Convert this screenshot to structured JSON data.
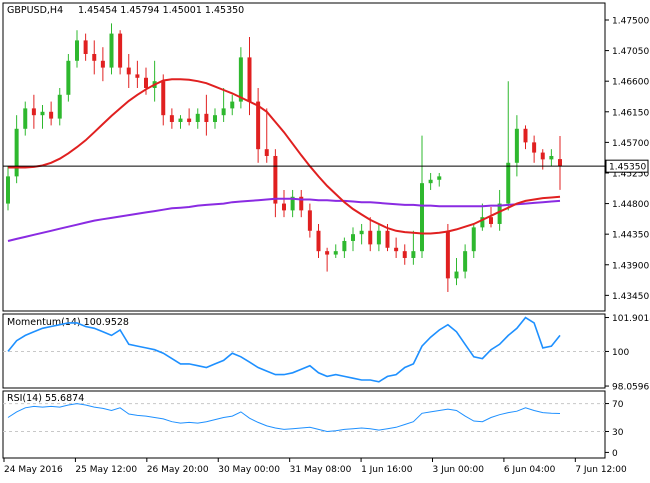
{
  "header": {
    "symbol": "GBPUSD,H4",
    "ohlc": "1.45454 1.45794 1.45001 1.45350"
  },
  "price_axis": {
    "ticks": [
      "1.47500",
      "1.47050",
      "1.46600",
      "1.46150",
      "1.45700",
      "1.45250",
      "1.44800",
      "1.44350",
      "1.43900",
      "1.43450"
    ],
    "current_price": "1.45350"
  },
  "momentum_panel": {
    "title": "Momentum(14) 100.9528",
    "ticks": [
      "101.9018",
      "100",
      "98.0596"
    ]
  },
  "rsi_panel": {
    "title": "RSI(14) 55.6874",
    "ticks": [
      "70",
      "30",
      "0"
    ]
  },
  "time_axis": {
    "labels": [
      "24 May 2016",
      "25 May 12:00",
      "26 May 20:00",
      "30 May 00:00",
      "31 May 08:00",
      "1 Jun 16:00",
      "3 Jun 00:00",
      "6 Jun 04:00",
      "7 Jun 12:00"
    ]
  },
  "colors": {
    "bull": "#2eb82e",
    "bear": "#e02020",
    "sma_fast": "#e02020",
    "sma_slow": "#8a2be2",
    "indicator": "#1e90ff",
    "grid": "#c8c8c8",
    "frame": "#000000"
  },
  "chart_data": [
    {
      "type": "candlestick",
      "title": "GBPUSD,H4 1.45454 1.45794 1.45001 1.45350",
      "ylim": [
        1.4322,
        1.4775
      ],
      "x_labels": [
        "24 May 2016",
        "25 May 12:00",
        "26 May 20:00",
        "30 May 00:00",
        "31 May 08:00",
        "1 Jun 16:00",
        "3 Jun 00:00",
        "6 Jun 04:00",
        "7 Jun 12:00"
      ],
      "candles": [
        {
          "o": 1.448,
          "h": 1.4535,
          "l": 1.447,
          "c": 1.452
        },
        {
          "o": 1.452,
          "h": 1.461,
          "l": 1.451,
          "c": 1.459
        },
        {
          "o": 1.459,
          "h": 1.463,
          "l": 1.458,
          "c": 1.462
        },
        {
          "o": 1.462,
          "h": 1.464,
          "l": 1.459,
          "c": 1.461
        },
        {
          "o": 1.461,
          "h": 1.4625,
          "l": 1.459,
          "c": 1.4615
        },
        {
          "o": 1.4615,
          "h": 1.463,
          "l": 1.4595,
          "c": 1.4605
        },
        {
          "o": 1.4605,
          "h": 1.465,
          "l": 1.4595,
          "c": 1.464
        },
        {
          "o": 1.464,
          "h": 1.47,
          "l": 1.463,
          "c": 1.469
        },
        {
          "o": 1.469,
          "h": 1.4735,
          "l": 1.468,
          "c": 1.472
        },
        {
          "o": 1.472,
          "h": 1.473,
          "l": 1.469,
          "c": 1.47
        },
        {
          "o": 1.47,
          "h": 1.472,
          "l": 1.467,
          "c": 1.469
        },
        {
          "o": 1.469,
          "h": 1.471,
          "l": 1.466,
          "c": 1.468
        },
        {
          "o": 1.468,
          "h": 1.4745,
          "l": 1.467,
          "c": 1.473
        },
        {
          "o": 1.473,
          "h": 1.4735,
          "l": 1.467,
          "c": 1.468
        },
        {
          "o": 1.468,
          "h": 1.47,
          "l": 1.465,
          "c": 1.467
        },
        {
          "o": 1.467,
          "h": 1.469,
          "l": 1.465,
          "c": 1.4665
        },
        {
          "o": 1.4665,
          "h": 1.468,
          "l": 1.464,
          "c": 1.465
        },
        {
          "o": 1.465,
          "h": 1.469,
          "l": 1.463,
          "c": 1.466
        },
        {
          "o": 1.466,
          "h": 1.467,
          "l": 1.4595,
          "c": 1.461
        },
        {
          "o": 1.461,
          "h": 1.462,
          "l": 1.459,
          "c": 1.46
        },
        {
          "o": 1.46,
          "h": 1.461,
          "l": 1.459,
          "c": 1.4605
        },
        {
          "o": 1.4605,
          "h": 1.462,
          "l": 1.4595,
          "c": 1.46
        },
        {
          "o": 1.46,
          "h": 1.462,
          "l": 1.459,
          "c": 1.4612
        },
        {
          "o": 1.4612,
          "h": 1.464,
          "l": 1.458,
          "c": 1.46
        },
        {
          "o": 1.46,
          "h": 1.462,
          "l": 1.459,
          "c": 1.461
        },
        {
          "o": 1.461,
          "h": 1.465,
          "l": 1.46,
          "c": 1.462
        },
        {
          "o": 1.462,
          "h": 1.464,
          "l": 1.461,
          "c": 1.463
        },
        {
          "o": 1.463,
          "h": 1.471,
          "l": 1.462,
          "c": 1.4695
        },
        {
          "o": 1.4695,
          "h": 1.4725,
          "l": 1.461,
          "c": 1.463
        },
        {
          "o": 1.463,
          "h": 1.465,
          "l": 1.454,
          "c": 1.456
        },
        {
          "o": 1.456,
          "h": 1.462,
          "l": 1.454,
          "c": 1.455
        },
        {
          "o": 1.455,
          "h": 1.456,
          "l": 1.446,
          "c": 1.448
        },
        {
          "o": 1.448,
          "h": 1.45,
          "l": 1.446,
          "c": 1.447
        },
        {
          "o": 1.447,
          "h": 1.45,
          "l": 1.446,
          "c": 1.449
        },
        {
          "o": 1.449,
          "h": 1.45,
          "l": 1.446,
          "c": 1.447
        },
        {
          "o": 1.447,
          "h": 1.448,
          "l": 1.443,
          "c": 1.444
        },
        {
          "o": 1.444,
          "h": 1.445,
          "l": 1.44,
          "c": 1.441
        },
        {
          "o": 1.441,
          "h": 1.4415,
          "l": 1.438,
          "c": 1.4405
        },
        {
          "o": 1.4405,
          "h": 1.442,
          "l": 1.44,
          "c": 1.441
        },
        {
          "o": 1.441,
          "h": 1.443,
          "l": 1.44,
          "c": 1.4425
        },
        {
          "o": 1.4425,
          "h": 1.4445,
          "l": 1.441,
          "c": 1.4435
        },
        {
          "o": 1.4435,
          "h": 1.445,
          "l": 1.442,
          "c": 1.444
        },
        {
          "o": 1.444,
          "h": 1.446,
          "l": 1.441,
          "c": 1.442
        },
        {
          "o": 1.442,
          "h": 1.445,
          "l": 1.441,
          "c": 1.444
        },
        {
          "o": 1.444,
          "h": 1.445,
          "l": 1.441,
          "c": 1.4415
        },
        {
          "o": 1.4415,
          "h": 1.443,
          "l": 1.44,
          "c": 1.441
        },
        {
          "o": 1.441,
          "h": 1.442,
          "l": 1.439,
          "c": 1.44
        },
        {
          "o": 1.44,
          "h": 1.444,
          "l": 1.439,
          "c": 1.441
        },
        {
          "o": 1.441,
          "h": 1.458,
          "l": 1.44,
          "c": 1.451
        },
        {
          "o": 1.451,
          "h": 1.4525,
          "l": 1.45,
          "c": 1.4515
        },
        {
          "o": 1.4515,
          "h": 1.4525,
          "l": 1.4505,
          "c": 1.452
        },
        {
          "o": 1.444,
          "h": 1.445,
          "l": 1.435,
          "c": 1.437
        },
        {
          "o": 1.437,
          "h": 1.44,
          "l": 1.436,
          "c": 1.438
        },
        {
          "o": 1.438,
          "h": 1.442,
          "l": 1.437,
          "c": 1.441
        },
        {
          "o": 1.441,
          "h": 1.445,
          "l": 1.44,
          "c": 1.4445
        },
        {
          "o": 1.4445,
          "h": 1.448,
          "l": 1.444,
          "c": 1.446
        },
        {
          "o": 1.446,
          "h": 1.4475,
          "l": 1.4445,
          "c": 1.445
        },
        {
          "o": 1.445,
          "h": 1.45,
          "l": 1.444,
          "c": 1.448
        },
        {
          "o": 1.448,
          "h": 1.466,
          "l": 1.447,
          "c": 1.454
        },
        {
          "o": 1.454,
          "h": 1.461,
          "l": 1.452,
          "c": 1.459
        },
        {
          "o": 1.459,
          "h": 1.4595,
          "l": 1.456,
          "c": 1.457
        },
        {
          "o": 1.457,
          "h": 1.458,
          "l": 1.454,
          "c": 1.4555
        },
        {
          "o": 1.4555,
          "h": 1.456,
          "l": 1.453,
          "c": 1.4545
        },
        {
          "o": 1.4545,
          "h": 1.456,
          "l": 1.4535,
          "c": 1.455
        },
        {
          "o": 1.45454,
          "h": 1.45794,
          "l": 1.45001,
          "c": 1.4535
        }
      ],
      "series": [
        {
          "type": "line",
          "values": [
            1.4533,
            1.4533,
            1.4533,
            1.4534,
            1.4536,
            1.454,
            1.4546,
            1.4554,
            1.4563,
            1.4573,
            1.4585,
            1.4597,
            1.4609,
            1.462,
            1.4631,
            1.464,
            1.4648,
            1.4655,
            1.4661,
            1.4663,
            1.4663,
            1.4662,
            1.466,
            1.4657,
            1.4652,
            1.4647,
            1.4642,
            1.4636,
            1.463,
            1.4624,
            1.4615,
            1.46,
            1.4585,
            1.4568,
            1.4551,
            1.4535,
            1.452,
            1.4506,
            1.4494,
            1.4482,
            1.4472,
            1.4464,
            1.4456,
            1.445,
            1.4444,
            1.444,
            1.4438,
            1.4437,
            1.4436,
            1.4436,
            1.4437,
            1.4439,
            1.4442,
            1.4446,
            1.445,
            1.4456,
            1.4462,
            1.4468,
            1.4474,
            1.448,
            1.4484,
            1.4486,
            1.4488,
            1.4489,
            1.449
          ]
        },
        {
          "type": "line",
          "values": [
            1.4425,
            1.4428,
            1.4431,
            1.4434,
            1.4437,
            1.444,
            1.4443,
            1.4446,
            1.4449,
            1.4452,
            1.4455,
            1.4457,
            1.4459,
            1.4461,
            1.4463,
            1.4465,
            1.4467,
            1.4469,
            1.4471,
            1.4473,
            1.4474,
            1.4475,
            1.4477,
            1.4478,
            1.4479,
            1.448,
            1.4482,
            1.4483,
            1.4484,
            1.4485,
            1.4486,
            1.4487,
            1.4487,
            1.4487,
            1.4486,
            1.4486,
            1.4485,
            1.4485,
            1.4484,
            1.4484,
            1.4483,
            1.4482,
            1.4482,
            1.4481,
            1.448,
            1.4479,
            1.4478,
            1.4478,
            1.4477,
            1.4477,
            1.4476,
            1.4476,
            1.4476,
            1.4476,
            1.4476,
            1.4476,
            1.4477,
            1.4477,
            1.4478,
            1.4479,
            1.448,
            1.4481,
            1.4482,
            1.4483,
            1.4484
          ]
        }
      ]
    },
    {
      "type": "line",
      "title": "Momentum(14) 100.9528",
      "ylim": [
        97.95,
        102.1
      ],
      "ticks": [
        101.9018,
        100,
        98.0596
      ],
      "values": [
        100.0,
        100.6,
        100.9,
        101.1,
        101.3,
        101.4,
        101.5,
        101.6,
        101.6,
        101.4,
        101.3,
        101.1,
        100.9,
        101.2,
        100.4,
        100.3,
        100.2,
        100.1,
        99.9,
        99.6,
        99.3,
        99.3,
        99.2,
        99.1,
        99.3,
        99.5,
        99.9,
        99.7,
        99.4,
        99.1,
        98.9,
        98.7,
        98.7,
        98.8,
        99.0,
        99.2,
        98.8,
        98.6,
        98.7,
        98.6,
        98.5,
        98.4,
        98.4,
        98.3,
        98.6,
        98.7,
        99.1,
        99.3,
        100.3,
        100.8,
        101.2,
        101.5,
        101.1,
        100.4,
        99.7,
        99.6,
        100.1,
        100.4,
        100.9,
        101.3,
        101.9,
        101.6,
        100.2,
        100.3,
        100.9
      ]
    },
    {
      "type": "line",
      "title": "RSI(14) 55.6874",
      "ylim": [
        -8,
        88
      ],
      "ticks": [
        70,
        30,
        0
      ],
      "values": [
        50,
        58,
        64,
        66,
        65,
        66,
        65,
        68,
        70,
        68,
        65,
        63,
        60,
        64,
        55,
        53,
        52,
        50,
        48,
        44,
        42,
        43,
        42,
        44,
        47,
        50,
        52,
        58,
        49,
        43,
        38,
        35,
        33,
        34,
        35,
        36,
        33,
        30,
        31,
        33,
        34,
        35,
        34,
        32,
        34,
        36,
        40,
        44,
        56,
        58,
        60,
        62,
        60,
        52,
        45,
        44,
        50,
        54,
        57,
        59,
        64,
        60,
        57,
        56,
        55.7
      ]
    }
  ]
}
